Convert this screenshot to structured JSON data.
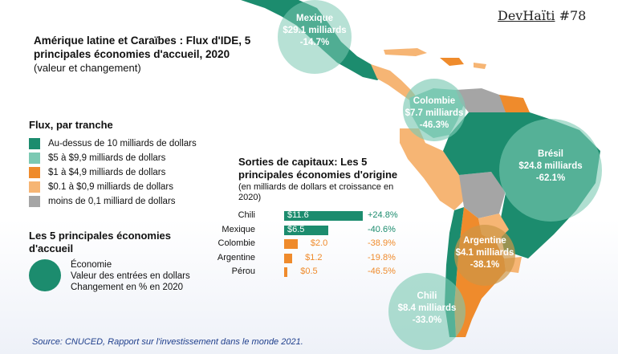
{
  "brand": {
    "part1": "DevHaïti",
    "part2": "#78"
  },
  "title": "Amérique latine et Caraïbes : Flux d'IDE, 5 principales économies d'accueil, 2020",
  "subtitle": "(valeur et changement)",
  "legend": {
    "title": "Flux, par tranche",
    "items": [
      {
        "label": "Au-dessus de 10 milliards de dollars",
        "color": "#1c8c6e"
      },
      {
        "label": "$5 à $9,9 milliards de dollars",
        "color": "#7cc9b3"
      },
      {
        "label": "$1 à $4,9 milliards de dollars",
        "color": "#ef8b2c"
      },
      {
        "label": "$0.1 à $0,9 milliards de dollars",
        "color": "#f6b574"
      },
      {
        "label": "moins de 0,1 milliard de dollars",
        "color": "#a5a5a5"
      }
    ]
  },
  "key": {
    "title": "Les 5 principales économies d'accueil",
    "lines": [
      "Économie",
      "Valeur des entrées en dollars",
      "Changement en % en 2020"
    ]
  },
  "outflows": {
    "title": "Sorties de capitaux: Les 5 principales économies d'origine",
    "subtitle": "(en milliards de dollars et croissance en 2020)"
  },
  "chart_data": {
    "type": "bar",
    "categories": [
      "Chili",
      "Mexique",
      "Colombie",
      "Argentine",
      "Pérou"
    ],
    "values": [
      11.6,
      6.5,
      2.0,
      1.2,
      0.5
    ],
    "value_labels": [
      "$11.6",
      "$6.5",
      "$2.0",
      "$1.2",
      "$0.5"
    ],
    "changes": [
      "+24.8%",
      "-40.6%",
      "-38.9%",
      "-19.8%",
      "-46.5%"
    ],
    "bar_colors": [
      "#1c8c6e",
      "#1c8c6e",
      "#ef8b2c",
      "#ef8b2c",
      "#ef8b2c"
    ]
  },
  "bubbles": [
    {
      "country": "Mexique",
      "value": "$29.1 milliards",
      "change": "-14.7%"
    },
    {
      "country": "Colombie",
      "value": "$7.7 milliards",
      "change": "-46.3%"
    },
    {
      "country": "Brésil",
      "value": "$24.8 milliards",
      "change": "-62.1%"
    },
    {
      "country": "Argentine",
      "value": "$4.1 milliards",
      "change": "-38.1%"
    },
    {
      "country": "Chili",
      "value": "$8.4 milliards",
      "change": "-33.0%"
    }
  ],
  "source": "Source: CNUCED, Rapport sur l'investissement dans le monde 2021."
}
